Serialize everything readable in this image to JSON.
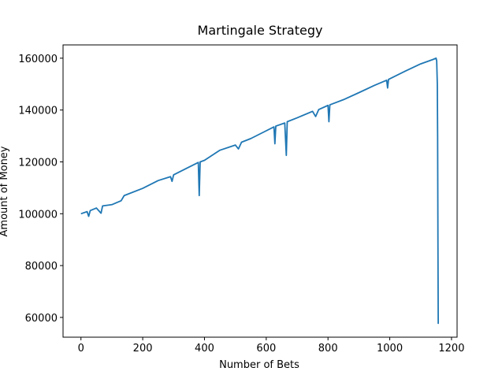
{
  "chart_data": {
    "type": "line",
    "title": "Martingale Strategy",
    "x_label": "Number of Bets",
    "y_label": "Amount of Money",
    "series": [
      {
        "name": "Amount of Money",
        "color": "#1f77b4",
        "x": [
          0,
          20,
          25,
          30,
          50,
          65,
          70,
          100,
          130,
          140,
          200,
          250,
          290,
          295,
          300,
          350,
          380,
          383,
          386,
          400,
          450,
          500,
          510,
          520,
          550,
          600,
          625,
          628,
          631,
          660,
          665,
          668,
          700,
          750,
          760,
          770,
          800,
          803,
          806,
          850,
          900,
          950,
          990,
          993,
          996,
          1050,
          1100,
          1140,
          1150,
          1152,
          1154,
          1155,
          1156,
          1157
        ],
        "values": [
          100000,
          100800,
          99000,
          101200,
          102200,
          100200,
          103000,
          103500,
          105000,
          107000,
          109800,
          112800,
          114300,
          112500,
          115000,
          118000,
          119800,
          107000,
          120000,
          120600,
          124500,
          126500,
          125000,
          127600,
          129000,
          132000,
          133500,
          127000,
          133800,
          135000,
          122500,
          135500,
          137000,
          139500,
          137500,
          140200,
          141800,
          135500,
          142000,
          144000,
          146700,
          149500,
          151500,
          148500,
          151800,
          155000,
          157800,
          159500,
          160000,
          159000,
          150000,
          130000,
          90000,
          57500
        ]
      }
    ],
    "xlim": [
      -58,
      1218
    ],
    "ylim": [
      52375,
      165125
    ],
    "xticks": [
      0,
      200,
      400,
      600,
      800,
      1000,
      1200
    ],
    "yticks": [
      60000,
      80000,
      100000,
      120000,
      140000,
      160000
    ]
  }
}
